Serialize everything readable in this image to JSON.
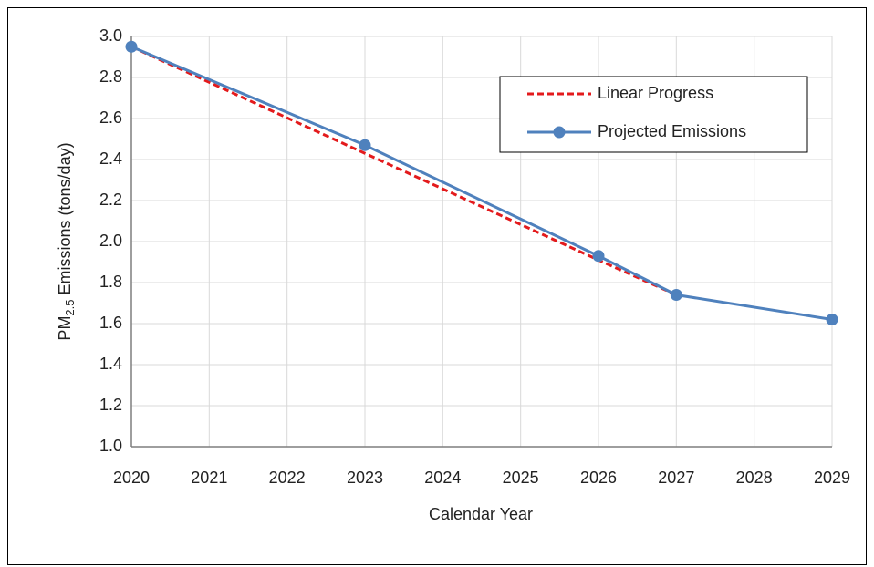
{
  "chart_data": {
    "type": "line",
    "x_label": "Calendar Year",
    "y_label": {
      "main": "PM",
      "subscript": "2.5",
      "rest": " Emissions (tons/day)"
    },
    "x": [
      2020,
      2023,
      2026,
      2027,
      2029
    ],
    "series": [
      {
        "name": "Linear Progress",
        "color": "#e31a1c",
        "linestyle": "dashed",
        "values": [
          2.95,
          2.43,
          1.91,
          1.74,
          null
        ]
      },
      {
        "name": "Projected Emissions",
        "color": "#4f81bd",
        "linestyle": "solid",
        "marker": "circle",
        "values": [
          2.95,
          2.47,
          1.93,
          1.74,
          1.62
        ]
      }
    ],
    "xlim": [
      2020,
      2029
    ],
    "xticks": [
      2020,
      2021,
      2022,
      2023,
      2024,
      2025,
      2026,
      2027,
      2028,
      2029
    ],
    "ylim": [
      1,
      3
    ],
    "yticks": [
      {
        "value": 1,
        "label": "1.0"
      },
      1.2,
      1.4,
      1.6,
      1.8,
      {
        "value": 2,
        "label": "2.0"
      },
      2.2,
      2.4,
      2.6,
      2.8,
      {
        "value": 3,
        "label": "3.0"
      }
    ],
    "grid": true,
    "legend": "upper right"
  }
}
